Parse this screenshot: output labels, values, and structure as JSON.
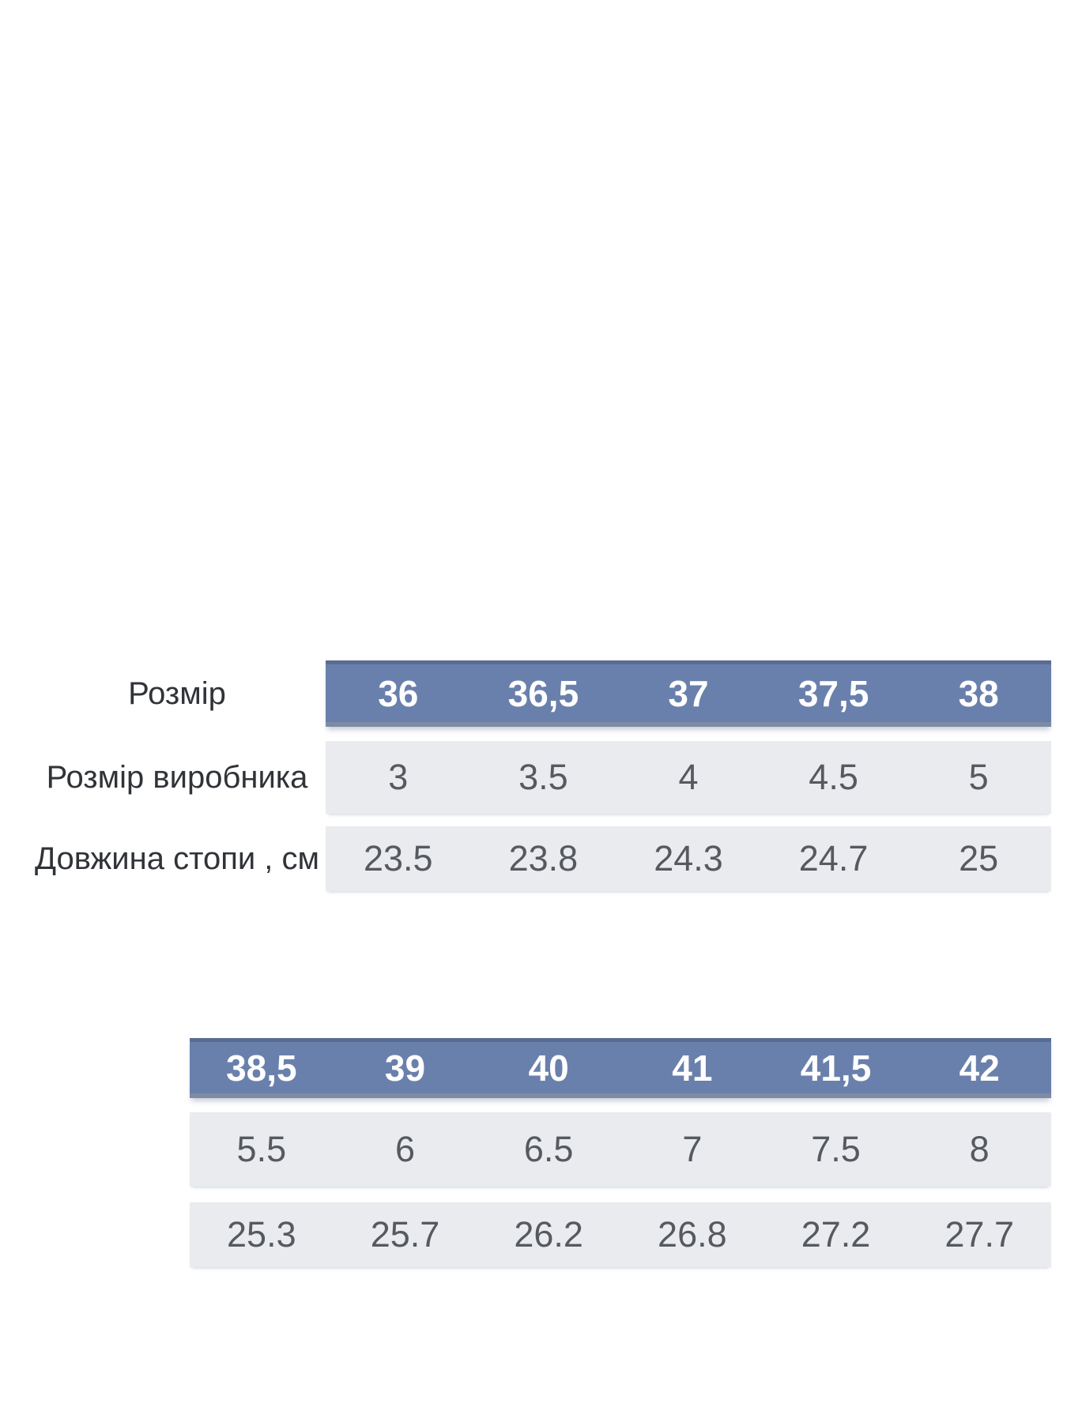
{
  "colors": {
    "header_background": "#6A80AC",
    "header_top_border": "#5A6C94",
    "header_bottom_border": "#7E8BA4",
    "header_text": "#FFFFFF",
    "data_row_background": "#E9EBEE",
    "data_text": "#56595F",
    "label_text": "#303338",
    "page_background": "#FFFFFF"
  },
  "chart_data": [
    {
      "type": "table",
      "row_headers": [
        "Розмір",
        "Розмір виробника",
        "Довжина стопи , см"
      ],
      "rows": [
        [
          "36",
          "36,5",
          "37",
          "37,5",
          "38"
        ],
        [
          "3",
          "3.5",
          "4",
          "4.5",
          "5"
        ],
        [
          "23.5",
          "23.8",
          "24.3",
          "24.7",
          "25"
        ]
      ]
    },
    {
      "type": "table",
      "row_headers": [],
      "rows": [
        [
          "38,5",
          "39",
          "40",
          "41",
          "41,5",
          "42"
        ],
        [
          "5.5",
          "6",
          "6.5",
          "7",
          "7.5",
          "8"
        ],
        [
          "25.3",
          "25.7",
          "26.2",
          "26.8",
          "27.2",
          "27.7"
        ]
      ]
    }
  ]
}
